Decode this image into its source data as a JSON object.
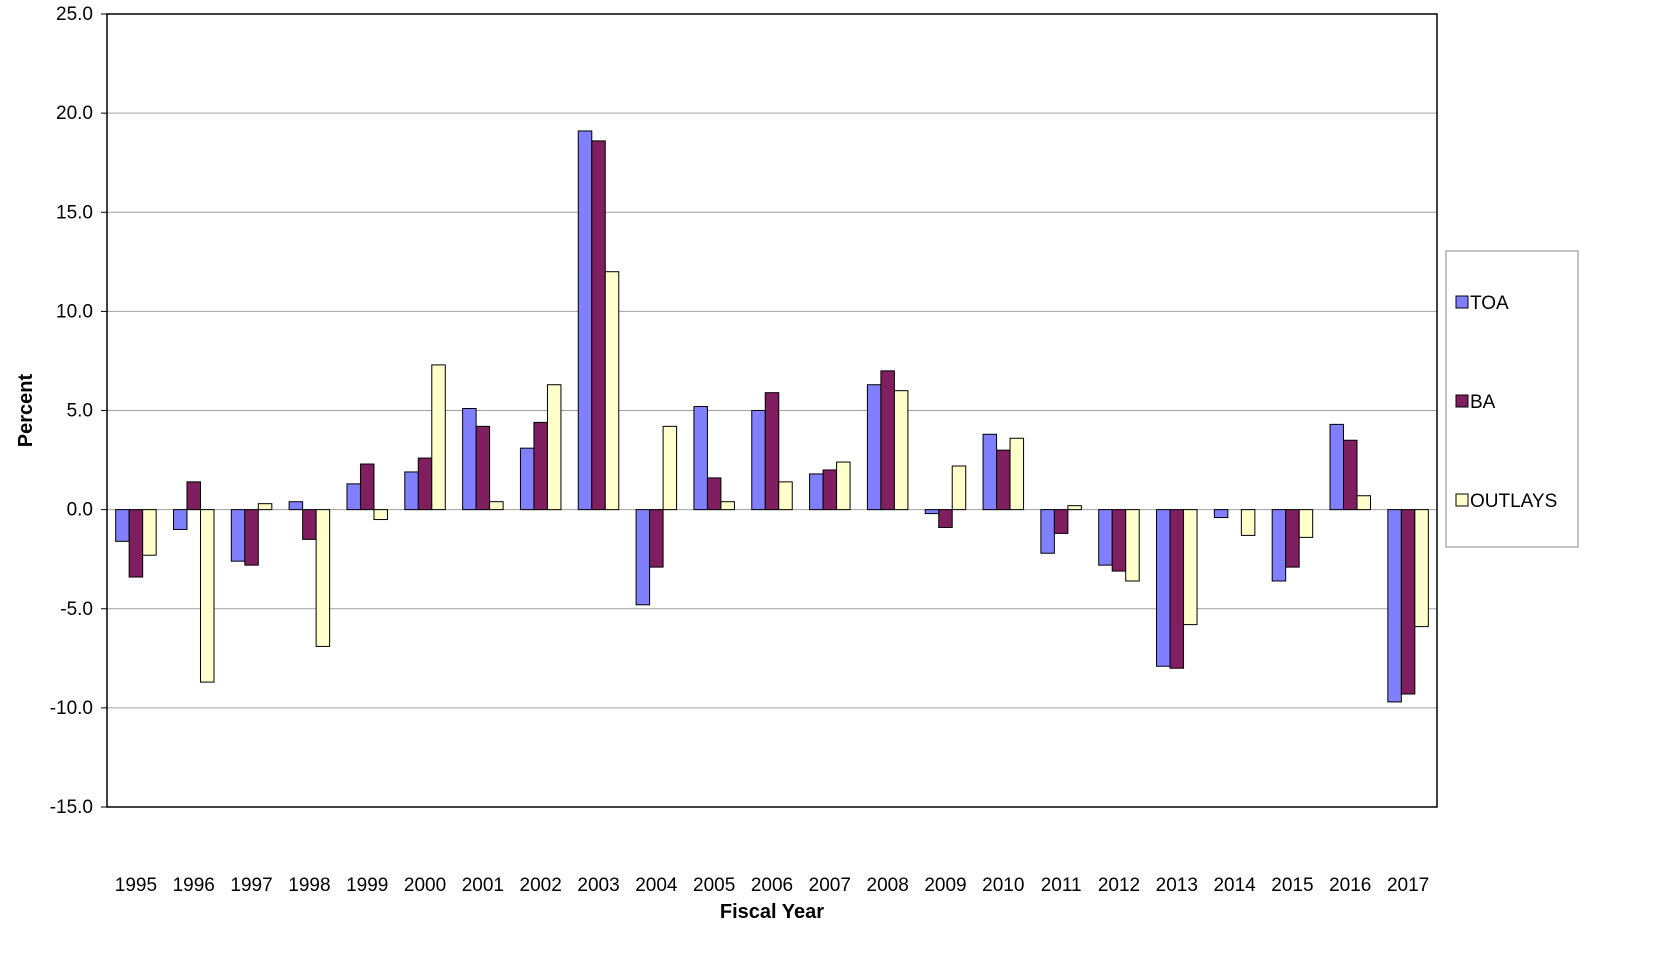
{
  "chart_data": {
    "type": "bar",
    "title": "",
    "xlabel": "Fiscal Year",
    "ylabel": "Percent",
    "ylim": [
      -15,
      25
    ],
    "yticks": [
      "25.0",
      "20.0",
      "15.0",
      "10.0",
      "5.0",
      "0.0",
      "-5.0",
      "-10.0",
      "-15.0"
    ],
    "grid": true,
    "legend_position": "right",
    "categories": [
      "1995",
      "1996",
      "1997",
      "1998",
      "1999",
      "2000",
      "2001",
      "2002",
      "2003",
      "2004",
      "2005",
      "2006",
      "2007",
      "2008",
      "2009",
      "2010",
      "2011",
      "2012",
      "2013",
      "2014",
      "2015",
      "2016",
      "2017"
    ],
    "series": [
      {
        "name": "TOA",
        "color": "#8080ff",
        "values": [
          -1.6,
          -1.0,
          -2.6,
          0.4,
          1.3,
          1.9,
          5.1,
          3.1,
          19.1,
          -4.8,
          5.2,
          5.0,
          1.8,
          6.3,
          -0.2,
          3.8,
          -2.2,
          -2.8,
          -7.9,
          -0.4,
          -3.6,
          4.3,
          -9.7
        ]
      },
      {
        "name": "BA",
        "color": "#7f1f5f",
        "values": [
          -3.4,
          1.4,
          -2.8,
          -1.5,
          2.3,
          2.6,
          4.2,
          4.4,
          18.6,
          -2.9,
          1.6,
          5.9,
          2.0,
          7.0,
          -0.9,
          3.0,
          -1.2,
          -3.1,
          -8.0,
          0.0,
          -2.9,
          3.5,
          -9.3
        ]
      },
      {
        "name": "OUTLAYS",
        "color": "#ffffcc",
        "values": [
          -2.3,
          -8.7,
          0.3,
          -6.9,
          -0.5,
          7.3,
          0.4,
          6.3,
          12.0,
          4.2,
          0.4,
          1.4,
          2.4,
          6.0,
          2.2,
          3.6,
          0.2,
          -3.6,
          -5.8,
          -1.3,
          -1.4,
          0.7,
          -5.9
        ]
      }
    ]
  }
}
